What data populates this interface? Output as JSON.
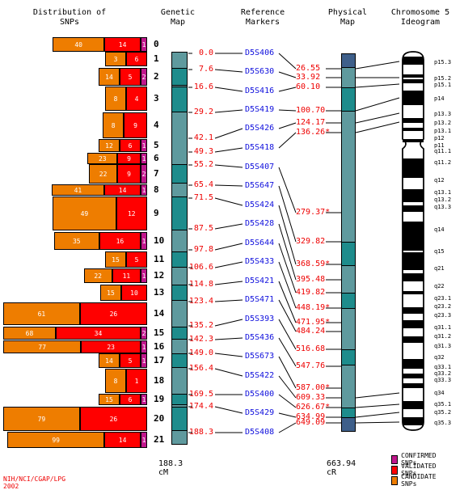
{
  "headers": {
    "snps": "Distribution of\nSNPs",
    "genetic": "Genetic\nMap",
    "reference": "Reference\nMarkers",
    "physical": "Physical\nMap",
    "ideogram": "Chromosome 5\nIdeogram"
  },
  "snp_bins": [
    {
      "bin": "0",
      "candidate": "40",
      "validated": "14",
      "confirmed": "1"
    },
    {
      "bin": "1",
      "candidate": "3",
      "validated": "6",
      "confirmed": ""
    },
    {
      "bin": "2",
      "candidate": "14",
      "validated": "5",
      "confirmed": "2"
    },
    {
      "bin": "3",
      "candidate": "8",
      "validated": "4",
      "confirmed": ""
    },
    {
      "bin": "4",
      "candidate": "8",
      "validated": "9",
      "confirmed": ""
    },
    {
      "bin": "5",
      "candidate": "12",
      "validated": "6",
      "confirmed": "1"
    },
    {
      "bin": "6",
      "candidate": "23",
      "validated": "9",
      "confirmed": "1"
    },
    {
      "bin": "7",
      "candidate": "22",
      "validated": "9",
      "confirmed": "2"
    },
    {
      "bin": "8",
      "candidate": "41",
      "validated": "14",
      "confirmed": "1"
    },
    {
      "bin": "9",
      "candidate": "49",
      "validated": "12",
      "confirmed": ""
    },
    {
      "bin": "10",
      "candidate": "35",
      "validated": "16",
      "confirmed": "1"
    },
    {
      "bin": "11",
      "candidate": "15",
      "validated": "5",
      "confirmed": ""
    },
    {
      "bin": "12",
      "candidate": "22",
      "validated": "11",
      "confirmed": "1"
    },
    {
      "bin": "13",
      "candidate": "15",
      "validated": "10",
      "confirmed": ""
    },
    {
      "bin": "14",
      "candidate": "61",
      "validated": "26",
      "confirmed": ""
    },
    {
      "bin": "15",
      "candidate": "68",
      "validated": "34",
      "confirmed": "2"
    },
    {
      "bin": "16",
      "candidate": "77",
      "validated": "23",
      "confirmed": "1"
    },
    {
      "bin": "17",
      "candidate": "14",
      "validated": "5",
      "confirmed": "1"
    },
    {
      "bin": "18",
      "candidate": "8",
      "validated": "1",
      "confirmed": ""
    },
    {
      "bin": "19",
      "candidate": "15",
      "validated": "6",
      "confirmed": "1"
    },
    {
      "bin": "20",
      "candidate": "79",
      "validated": "26",
      "confirmed": ""
    },
    {
      "bin": "21",
      "candidate": "99",
      "validated": "14",
      "confirmed": "1"
    }
  ],
  "markers": [
    {
      "cm": "0.0",
      "name": "D5S406",
      "cr": "26.55"
    },
    {
      "cm": "7.6",
      "name": "D5S630",
      "cr": "33.92"
    },
    {
      "cm": "16.6",
      "name": "D5S416",
      "cr": "60.10"
    },
    {
      "cm": "29.2",
      "name": "D5S419",
      "cr": "100.70"
    },
    {
      "cm": "42.1",
      "name": "D5S426",
      "cr": "124.17"
    },
    {
      "cm": "49.3",
      "name": "D5S418",
      "cr": "136.26*"
    },
    {
      "cm": "55.2",
      "name": "D5S407",
      "cr": "279.37*"
    },
    {
      "cm": "65.4",
      "name": "D5S647",
      "cr": "329.82"
    },
    {
      "cm": "71.5",
      "name": "D5S424",
      "cr": "368.59*"
    },
    {
      "cm": "87.5",
      "name": "D5S428",
      "cr": "395.48"
    },
    {
      "cm": "97.8",
      "name": "D5S644",
      "cr": "419.82"
    },
    {
      "cm": "106.6",
      "name": "D5S433",
      "cr": "448.19*"
    },
    {
      "cm": "114.8",
      "name": "D5S421",
      "cr": "471.95*"
    },
    {
      "cm": "123.4",
      "name": "D5S471",
      "cr": "484.24"
    },
    {
      "cm": "135.2",
      "name": "D5S393",
      "cr": "516.68"
    },
    {
      "cm": "142.3",
      "name": "D5S436",
      "cr": "547.76"
    },
    {
      "cm": "149.0",
      "name": "D5S673",
      "cr": "587.00*"
    },
    {
      "cm": "156.4",
      "name": "D5S422",
      "cr": "609.33"
    },
    {
      "cm": "169.5",
      "name": "D5S400",
      "cr": "626.67*"
    },
    {
      "cm": "174.4",
      "name": "D5S429",
      "cr": "634.99"
    },
    {
      "cm": "188.3",
      "name": "D5S408",
      "cr": "649.09"
    }
  ],
  "bands": [
    "p15.3",
    "p15.2",
    "p15.1",
    "p14",
    "p13.3",
    "p13.2",
    "p13.1",
    "p12",
    "p11",
    "q11.1",
    "q11.2",
    "q12",
    "q13.1",
    "q13.2",
    "q13.3",
    "q14",
    "q15",
    "q21",
    "q22",
    "q23.1",
    "q23.2",
    "q23.3",
    "q31.1",
    "q31.2",
    "q31.3",
    "q32",
    "q33.1",
    "q33.2",
    "q33.3",
    "q34",
    "q35.1",
    "q35.2",
    "q35.3"
  ],
  "footer": {
    "genetic_total": "188.3 cM",
    "physical_total": "663.94 cR",
    "credit": "NIH/NCI/CGAP/LPG 2002"
  },
  "legend": [
    {
      "label": "CONFIRMED SNPs",
      "color": "#c0178c"
    },
    {
      "label": "VALIDATED SNPs",
      "color": "#ff0000"
    },
    {
      "label": "CANDIDATE SNPs",
      "color": "#ee7d00"
    }
  ],
  "colors": {
    "genetic_map_fill": "#5f9a9e",
    "genetic_map_alt": "#1e8c8c",
    "physical_map_fill": "#5f9a9e",
    "marker_text": "#1010dd",
    "value_text": "#ee0000"
  }
}
